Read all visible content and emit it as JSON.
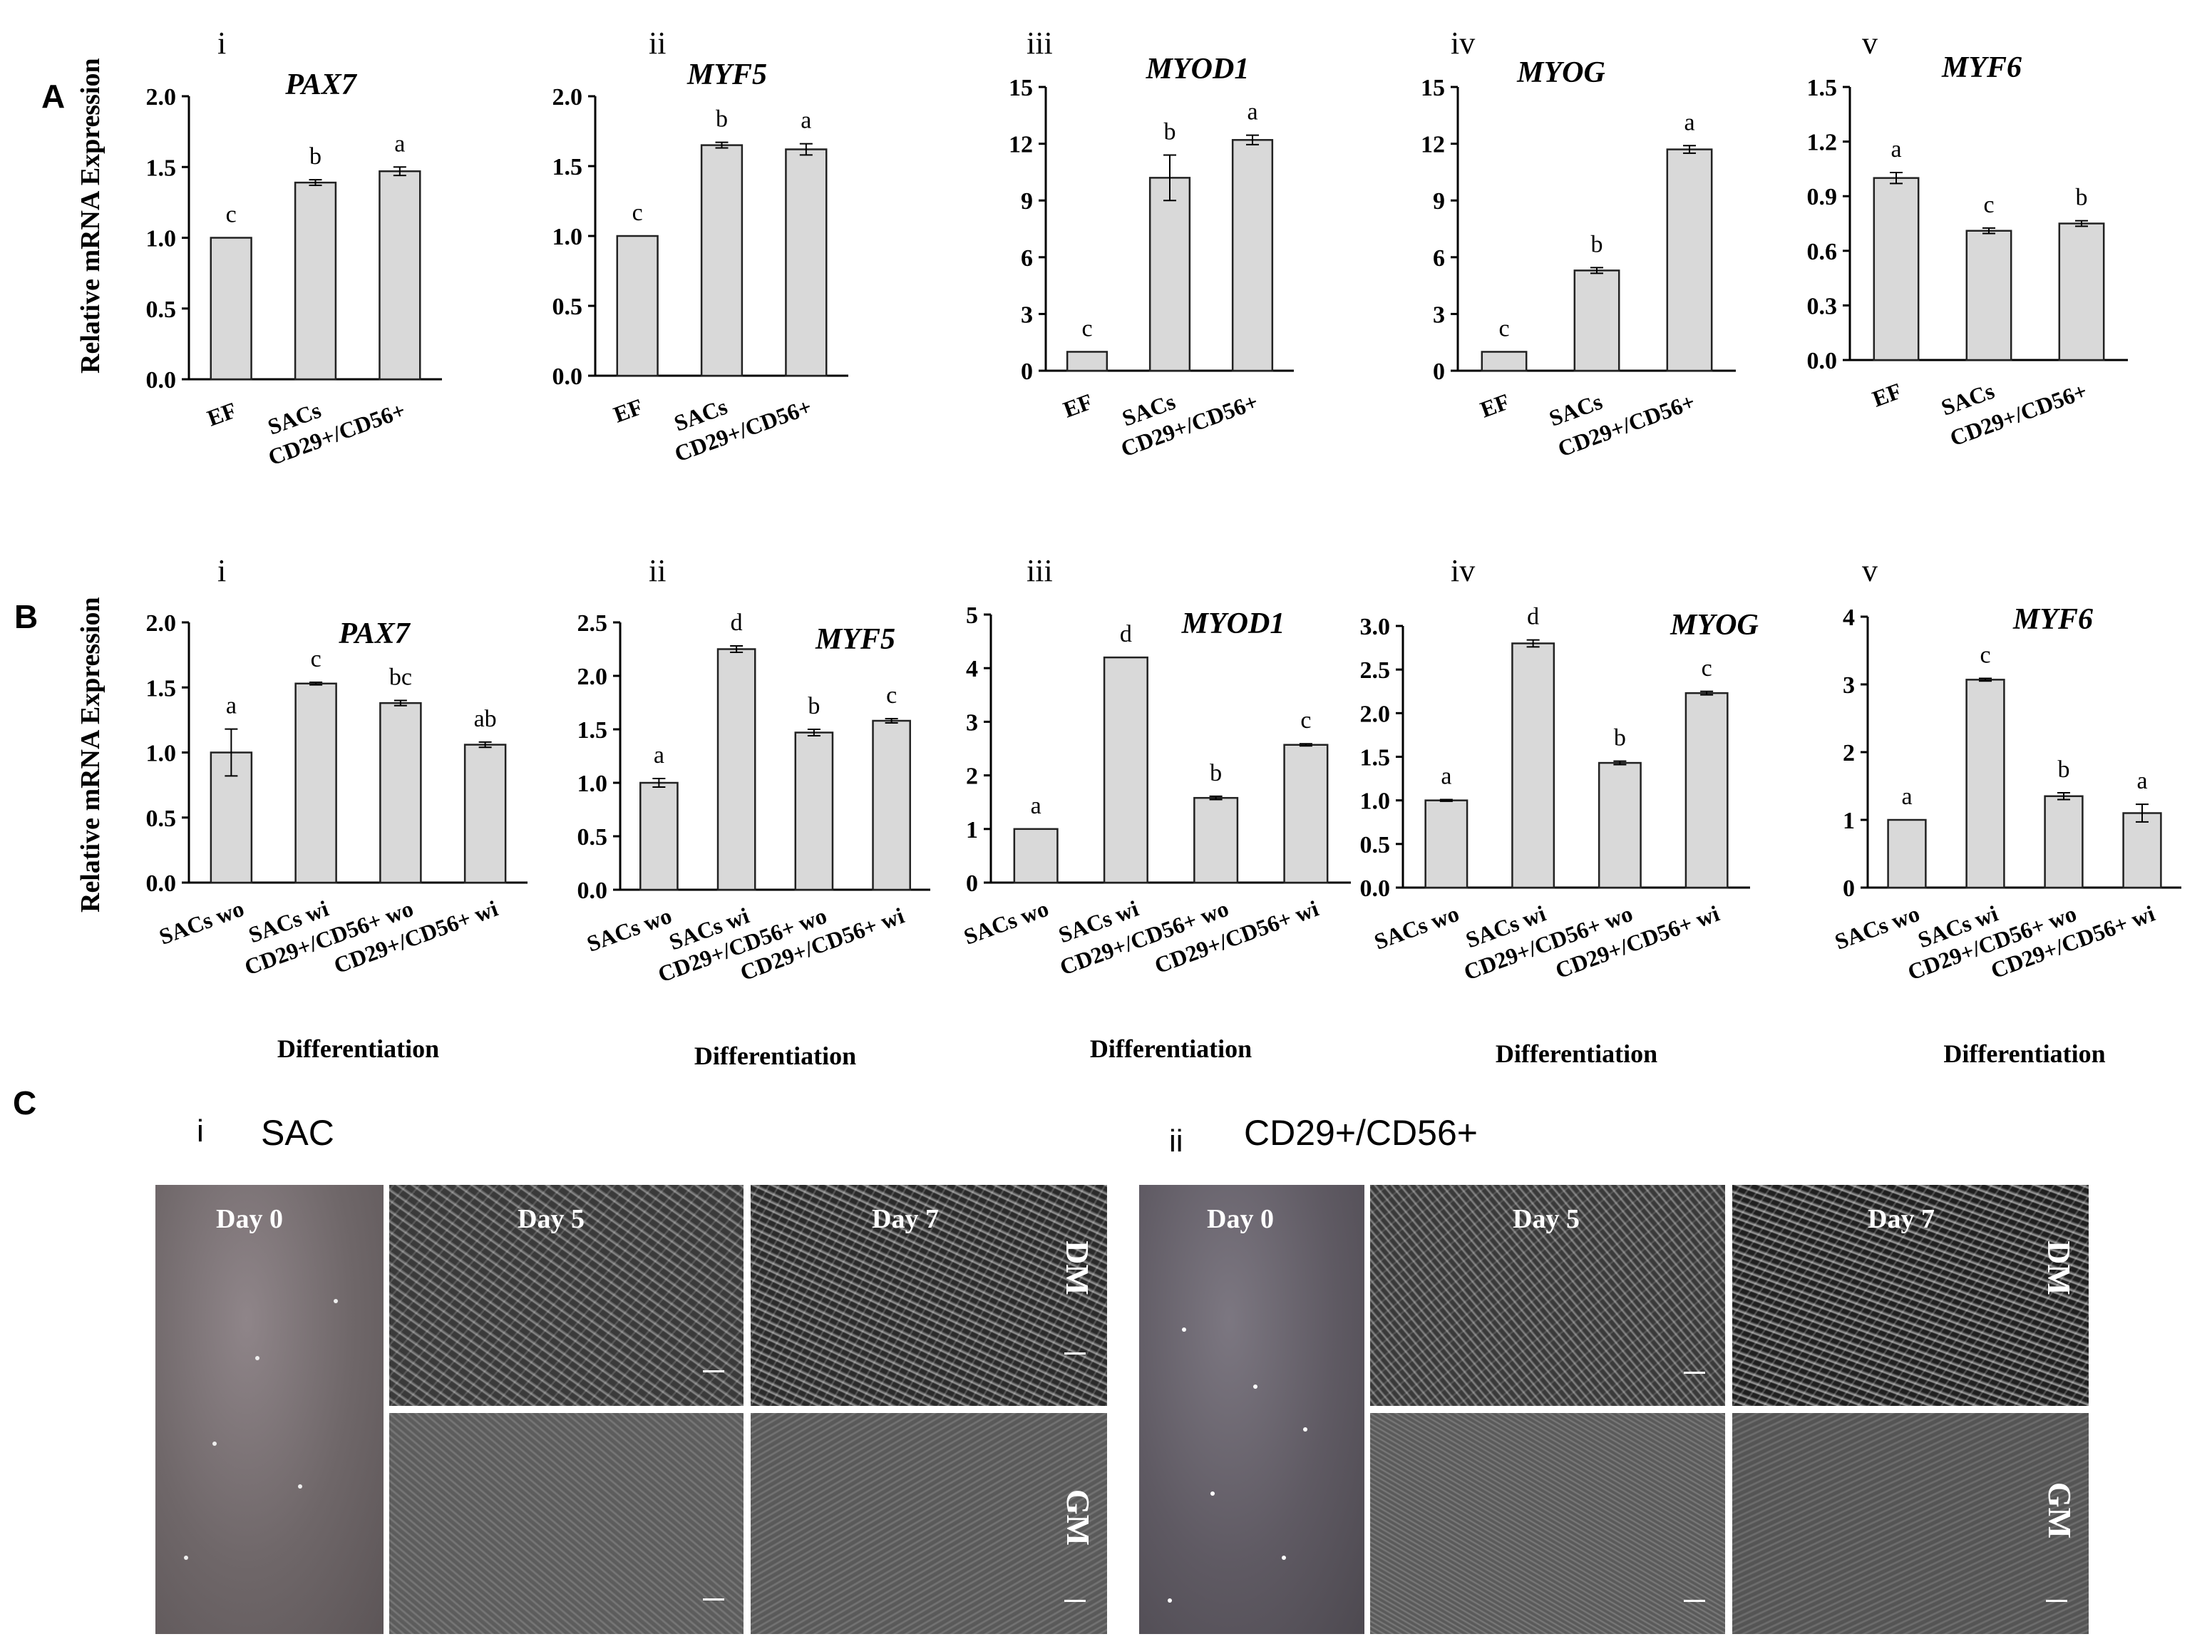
{
  "panel_letters": {
    "A": "A",
    "B": "B",
    "C": "C"
  },
  "y_axis_label": "Relative mRNA Expression",
  "chart_data": [
    {
      "id": "A-i",
      "type": "bar",
      "numeral": "i",
      "title": "PAX7",
      "categories": [
        "EF",
        "SACs",
        "CD29+/CD56+"
      ],
      "values": [
        1.0,
        1.39,
        1.47
      ],
      "errors": [
        0,
        0.02,
        0.03
      ],
      "letters": [
        "c",
        "b",
        "a"
      ],
      "ylim": [
        0,
        2.0
      ],
      "yticks": [
        "0.0",
        "0.5",
        "1.0",
        "1.5",
        "2.0"
      ],
      "xlabel": ""
    },
    {
      "id": "A-ii",
      "type": "bar",
      "numeral": "ii",
      "title": "MYF5",
      "categories": [
        "EF",
        "SACs",
        "CD29+/CD56+"
      ],
      "values": [
        1.0,
        1.65,
        1.62
      ],
      "errors": [
        0,
        0.02,
        0.04
      ],
      "letters": [
        "c",
        "b",
        "a"
      ],
      "ylim": [
        0,
        2.0
      ],
      "yticks": [
        "0.0",
        "0.5",
        "1.0",
        "1.5",
        "2.0"
      ],
      "xlabel": ""
    },
    {
      "id": "A-iii",
      "type": "bar",
      "numeral": "iii",
      "title": "MYOD1",
      "categories": [
        "EF",
        "SACs",
        "CD29+/CD56+"
      ],
      "values": [
        1.0,
        10.2,
        12.2
      ],
      "errors": [
        0,
        1.2,
        0.25
      ],
      "letters": [
        "c",
        "b",
        "a"
      ],
      "ylim": [
        0,
        15
      ],
      "yticks": [
        "0",
        "3",
        "6",
        "9",
        "12",
        "15"
      ],
      "xlabel": ""
    },
    {
      "id": "A-iv",
      "type": "bar",
      "numeral": "iv",
      "title": "MYOG",
      "categories": [
        "EF",
        "SACs",
        "CD29+/CD56+"
      ],
      "values": [
        1.0,
        5.3,
        11.7
      ],
      "errors": [
        0,
        0.15,
        0.2
      ],
      "letters": [
        "c",
        "b",
        "a"
      ],
      "ylim": [
        0,
        15
      ],
      "yticks": [
        "0",
        "3",
        "6",
        "9",
        "12",
        "15"
      ],
      "xlabel": ""
    },
    {
      "id": "A-v",
      "type": "bar",
      "numeral": "v",
      "title": "MYF6",
      "categories": [
        "EF",
        "SACs",
        "CD29+/CD56+"
      ],
      "values": [
        1.0,
        0.71,
        0.75
      ],
      "errors": [
        0.03,
        0.015,
        0.015
      ],
      "letters": [
        "a",
        "c",
        "b"
      ],
      "ylim": [
        0,
        1.5
      ],
      "yticks": [
        "0.0",
        "0.3",
        "0.6",
        "0.9",
        "1.2",
        "1.5"
      ],
      "xlabel": ""
    },
    {
      "id": "B-i",
      "type": "bar",
      "numeral": "i",
      "title": "PAX7",
      "categories": [
        "SACs wo",
        "SACs wi",
        "CD29+/CD56+ wo",
        "CD29+/CD56+ wi"
      ],
      "values": [
        1.0,
        1.53,
        1.38,
        1.06
      ],
      "errors": [
        0.18,
        0.01,
        0.02,
        0.02
      ],
      "letters": [
        "a",
        "c",
        "bc",
        "ab"
      ],
      "ylim": [
        0,
        2.0
      ],
      "yticks": [
        "0.0",
        "0.5",
        "1.0",
        "1.5",
        "2.0"
      ],
      "xlabel": "Differentiation"
    },
    {
      "id": "B-ii",
      "type": "bar",
      "numeral": "ii",
      "title": "MYF5",
      "categories": [
        "SACs wo",
        "SACs wi",
        "CD29+/CD56+ wo",
        "CD29+/CD56+ wi"
      ],
      "values": [
        1.0,
        2.25,
        1.47,
        1.58
      ],
      "errors": [
        0.04,
        0.03,
        0.03,
        0.02
      ],
      "letters": [
        "a",
        "d",
        "b",
        "c"
      ],
      "ylim": [
        0,
        2.5
      ],
      "yticks": [
        "0.0",
        "0.5",
        "1.0",
        "1.5",
        "2.0",
        "2.5"
      ],
      "xlabel": "Differentiation"
    },
    {
      "id": "B-iii",
      "type": "bar",
      "numeral": "iii",
      "title": "MYOD1",
      "categories": [
        "SACs wo",
        "SACs wi",
        "CD29+/CD56+ wo",
        "CD29+/CD56+ wi"
      ],
      "values": [
        1.0,
        4.2,
        1.58,
        2.57
      ],
      "errors": [
        0,
        0,
        0.03,
        0.02
      ],
      "letters": [
        "a",
        "d",
        "b",
        "c"
      ],
      "ylim": [
        0,
        5
      ],
      "yticks": [
        "0",
        "1",
        "2",
        "3",
        "4",
        "5"
      ],
      "xlabel": "Differentiation"
    },
    {
      "id": "B-iv",
      "type": "bar",
      "numeral": "iv",
      "title": "MYOG",
      "categories": [
        "SACs wo",
        "SACs wi",
        "CD29+/CD56+ wo",
        "CD29+/CD56+ wi"
      ],
      "values": [
        1.0,
        2.8,
        1.43,
        2.23
      ],
      "errors": [
        0.01,
        0.04,
        0.02,
        0.02
      ],
      "letters": [
        "a",
        "d",
        "b",
        "c"
      ],
      "ylim": [
        0,
        3.0
      ],
      "yticks": [
        "0.0",
        "0.5",
        "1.0",
        "1.5",
        "2.0",
        "2.5",
        "3.0"
      ],
      "xlabel": "Differentiation"
    },
    {
      "id": "B-v",
      "type": "bar",
      "numeral": "v",
      "title": "MYF6",
      "categories": [
        "SACs wo",
        "SACs wi",
        "CD29+/CD56+ wo",
        "CD29+/CD56+ wi"
      ],
      "values": [
        1.0,
        3.07,
        1.35,
        1.1
      ],
      "errors": [
        0,
        0.02,
        0.05,
        0.13
      ],
      "letters": [
        "a",
        "c",
        "b",
        "a"
      ],
      "ylim": [
        0,
        4
      ],
      "yticks": [
        "0",
        "1",
        "2",
        "3",
        "4"
      ],
      "xlabel": "Differentiation"
    }
  ],
  "panel_c": {
    "left": {
      "numeral": "i",
      "title": "SAC"
    },
    "right": {
      "numeral": "ii",
      "title": "CD29+/CD56+"
    },
    "day0": "Day 0",
    "day5": "Day 5",
    "day7": "Day 7",
    "dm": "DM",
    "gm": "GM"
  }
}
